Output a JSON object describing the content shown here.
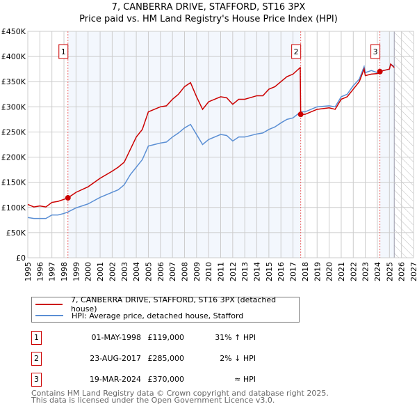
{
  "title": "7, CANBERRA DRIVE, STAFFORD, ST16 3PX",
  "subtitle": "Price paid vs. HM Land Registry's House Price Index (HPI)",
  "chart_data": {
    "type": "line",
    "xlim": [
      1995,
      2027
    ],
    "ylim": [
      0,
      450000
    ],
    "x_ticks": [
      1995,
      1996,
      1997,
      1998,
      1999,
      2000,
      2001,
      2002,
      2003,
      2004,
      2005,
      2006,
      2007,
      2008,
      2009,
      2010,
      2011,
      2012,
      2013,
      2014,
      2015,
      2016,
      2017,
      2018,
      2019,
      2020,
      2021,
      2022,
      2023,
      2024,
      2025,
      2026,
      2027
    ],
    "y_ticks": [
      0,
      50000,
      100000,
      150000,
      200000,
      250000,
      300000,
      350000,
      400000,
      450000
    ],
    "y_tick_labels": [
      "£0",
      "£50K",
      "£100K",
      "£150K",
      "£200K",
      "£250K",
      "£300K",
      "£350K",
      "£400K",
      "£450K"
    ],
    "grid": true,
    "series": [
      {
        "name": "7, CANBERRA DRIVE, STAFFORD, ST16 3PX (detached house)",
        "color": "#cc0000",
        "x": [
          1995,
          1995.5,
          1996,
          1996.5,
          1997,
          1997.5,
          1998,
          1998.33,
          1999,
          2000,
          2001,
          2002,
          2002.5,
          2003,
          2003.5,
          2004,
          2004.5,
          2005,
          2005.5,
          2006,
          2006.5,
          2007,
          2007.5,
          2008,
          2008.5,
          2009,
          2009.5,
          2010,
          2011,
          2011.5,
          2012,
          2012.5,
          2013,
          2014,
          2014.5,
          2015,
          2015.5,
          2016,
          2016.5,
          2017,
          2017.6,
          2017.64,
          2018,
          2018.5,
          2019,
          2020,
          2020.5,
          2021,
          2021.5,
          2022,
          2022.5,
          2022.9,
          2023,
          2023.5,
          2024,
          2024.2,
          2024.5,
          2025,
          2025.1,
          2025.4
        ],
        "y": [
          106000,
          101000,
          103000,
          101000,
          110000,
          112000,
          116000,
          119000,
          130000,
          141000,
          158000,
          172000,
          180000,
          190000,
          215000,
          240000,
          255000,
          290000,
          295000,
          300000,
          302000,
          315000,
          325000,
          340000,
          348000,
          320000,
          295000,
          310000,
          320000,
          318000,
          305000,
          315000,
          315000,
          322000,
          322000,
          335000,
          340000,
          350000,
          360000,
          365000,
          378000,
          285000,
          285000,
          290000,
          295000,
          298000,
          295000,
          315000,
          320000,
          335000,
          350000,
          375000,
          362000,
          365000,
          366000,
          370000,
          372000,
          375000,
          385000,
          378000
        ]
      },
      {
        "name": "HPI: Average price, detached house, Stafford",
        "color": "#5b8fd4",
        "x": [
          1995,
          1995.5,
          1996,
          1996.5,
          1997,
          1997.5,
          1998,
          1998.33,
          1999,
          2000,
          2001,
          2002,
          2002.5,
          2003,
          2003.5,
          2004,
          2004.5,
          2005,
          2005.5,
          2006,
          2006.5,
          2007,
          2007.5,
          2008,
          2008.5,
          2009,
          2009.5,
          2010,
          2011,
          2011.5,
          2012,
          2012.5,
          2013,
          2014,
          2014.5,
          2015,
          2015.5,
          2016,
          2016.5,
          2017,
          2017.64,
          2018,
          2018.5,
          2019,
          2020,
          2020.5,
          2021,
          2021.5,
          2022,
          2022.5,
          2022.9,
          2023,
          2023.5,
          2024,
          2024.2,
          2024.5,
          2025,
          2025.1,
          2025.4
        ],
        "y": [
          80000,
          78000,
          78000,
          78000,
          85000,
          85000,
          88000,
          91000,
          99000,
          107000,
          120000,
          130000,
          135000,
          145000,
          165000,
          180000,
          195000,
          222000,
          225000,
          228000,
          230000,
          240000,
          248000,
          258000,
          265000,
          245000,
          225000,
          235000,
          245000,
          243000,
          232000,
          240000,
          240000,
          246000,
          248000,
          255000,
          260000,
          268000,
          275000,
          278000,
          290000,
          290000,
          295000,
          300000,
          302000,
          300000,
          320000,
          325000,
          342000,
          355000,
          380000,
          368000,
          372000,
          368000,
          370000,
          372000,
          375000,
          385000,
          380000
        ]
      }
    ],
    "sales": [
      {
        "label": "1",
        "x": 1998.33,
        "y": 119000
      },
      {
        "label": "2",
        "x": 2017.64,
        "y": 285000
      },
      {
        "label": "3",
        "x": 2024.21,
        "y": 370000
      }
    ],
    "data_end": 2025.4
  },
  "legend": {
    "property": "7, CANBERRA DRIVE, STAFFORD, ST16 3PX (detached house)",
    "hpi": "HPI: Average price, detached house, Stafford"
  },
  "transactions": [
    {
      "num": "1",
      "date": "01-MAY-1998",
      "price": "£119,000",
      "hpi": "31% ↑ HPI"
    },
    {
      "num": "2",
      "date": "23-AUG-2017",
      "price": "£285,000",
      "hpi": "2% ↓ HPI"
    },
    {
      "num": "3",
      "date": "19-MAR-2024",
      "price": "£370,000",
      "hpi": "≈ HPI"
    }
  ],
  "footer": {
    "line1": "Contains HM Land Registry data © Crown copyright and database right 2025.",
    "line2": "This data is licensed under the Open Government Licence v3.0."
  }
}
